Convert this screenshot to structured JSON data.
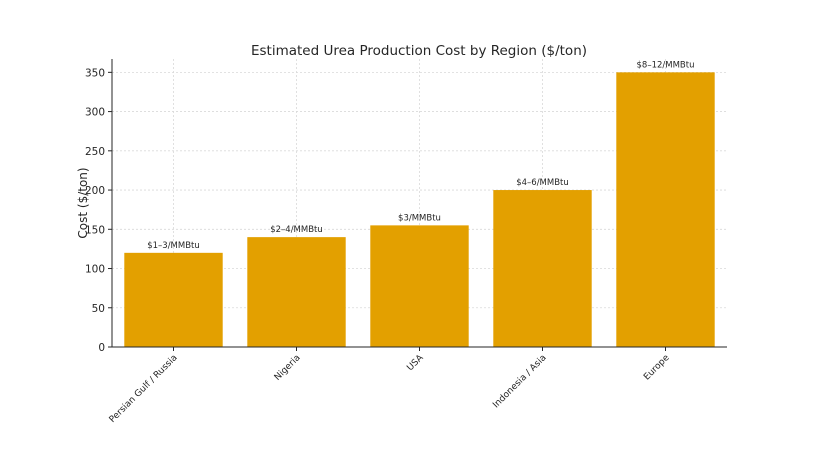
{
  "chart_data": {
    "type": "bar",
    "title": "Estimated Urea Production Cost by Region ($/ton)",
    "xlabel": "",
    "ylabel": "Cost ($/ton)",
    "categories": [
      "Persian Gulf / Russia",
      "Nigeria",
      "USA",
      "Indonesia / Asia",
      "Europe"
    ],
    "values": [
      120,
      140,
      155,
      200,
      350
    ],
    "data_labels": [
      "$1–3/MMBtu",
      "$2–4/MMBtu",
      "$3/MMBtu",
      "$4–6/MMBtu",
      "$8–12/MMBtu"
    ],
    "ylim": [
      0,
      367
    ],
    "yticks": [
      0,
      50,
      100,
      150,
      200,
      250,
      300,
      350
    ],
    "grid": true,
    "bar_color": "#E3A000"
  }
}
